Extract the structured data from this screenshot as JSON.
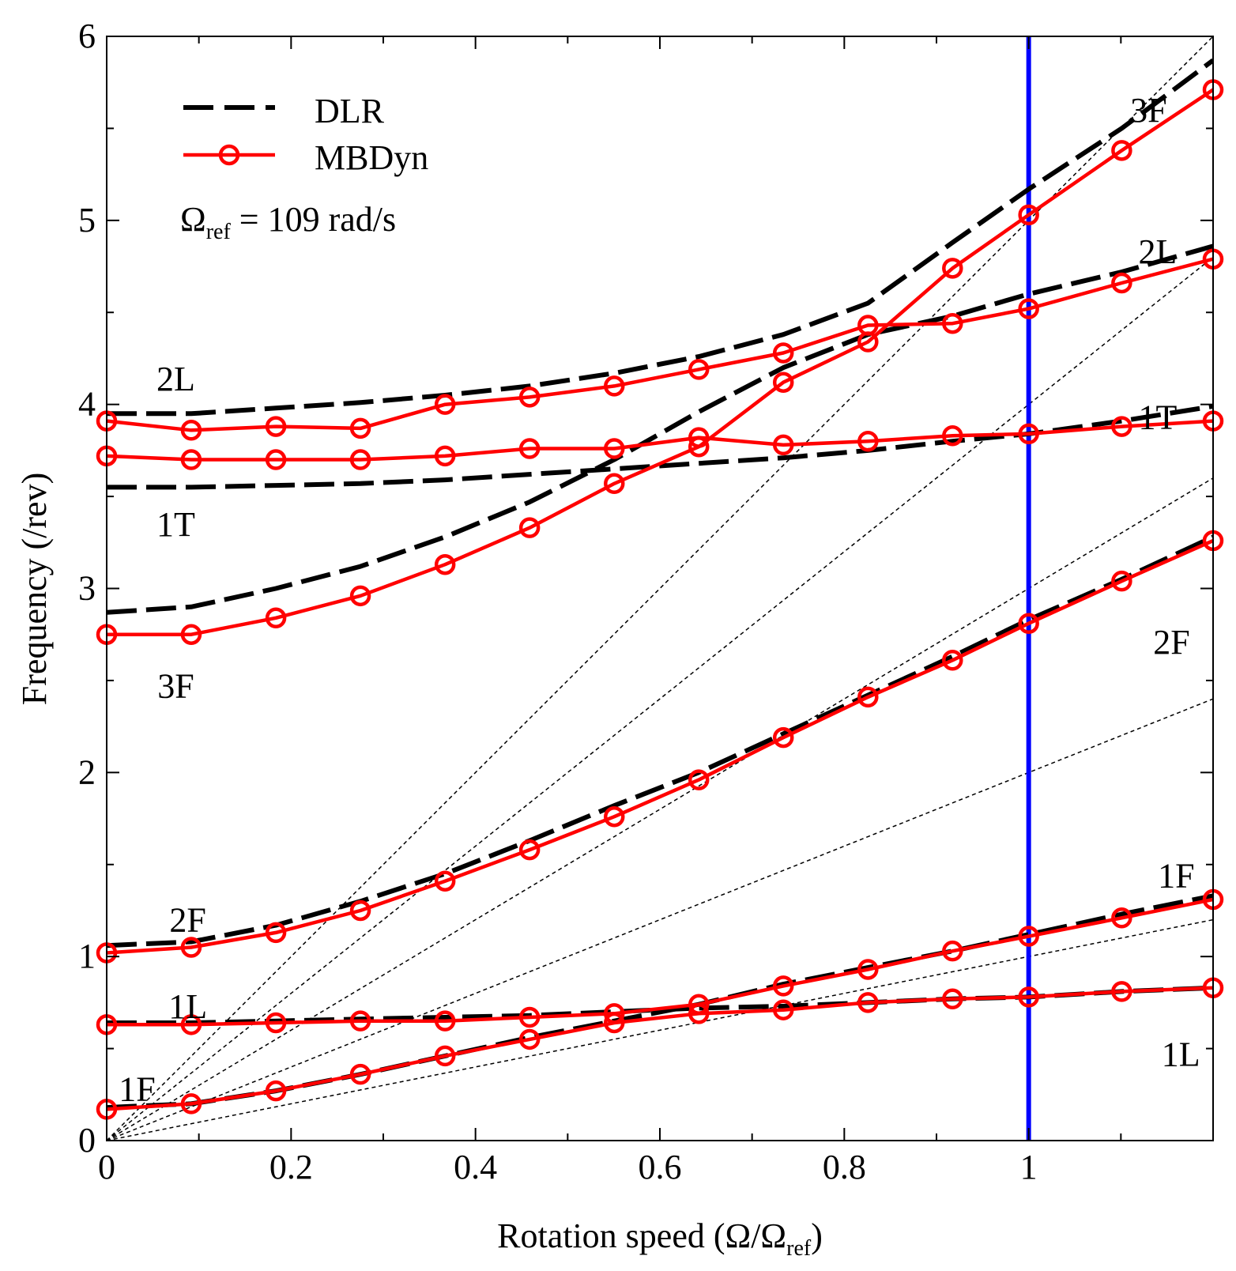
{
  "chart_data": {
    "type": "line",
    "title": "",
    "xlabel": "Rotation speed (Ω/Ωref)",
    "xlabel_parts": {
      "main": "Rotation speed (Ω/Ω",
      "sub": "ref",
      "close": ")"
    },
    "ylabel": "Frequency (/rev)",
    "xlim": [
      0,
      1.2
    ],
    "ylim": [
      0,
      6
    ],
    "x_ticks": [
      0,
      0.2,
      0.4,
      0.6,
      0.8,
      1
    ],
    "x_tick_labels": [
      "0",
      "0.2",
      "0.4",
      "0.6",
      "0.8",
      "1"
    ],
    "x_minor_step": 0.1,
    "y_ticks": [
      0,
      1,
      2,
      3,
      4,
      5,
      6
    ],
    "y_tick_labels": [
      "0",
      "1",
      "2",
      "3",
      "4",
      "5",
      "6"
    ],
    "y_minor_step": 0.5,
    "grid": false,
    "legend": {
      "placement": "top-left",
      "entries": [
        {
          "label": "DLR",
          "style": "dashed",
          "color": "#000000"
        },
        {
          "label": "MBDyn",
          "style": "solid-circle",
          "color": "#ff0000"
        }
      ]
    },
    "reference_note": {
      "symbol": "Ω",
      "sub": "ref",
      "rest": " = 109 rad/s"
    },
    "reference_line": {
      "x": 1,
      "color": "#0000ff"
    },
    "per_rev_lines": [
      1,
      2,
      3,
      4,
      5
    ],
    "x": [
      0,
      0.0917,
      0.1835,
      0.2752,
      0.367,
      0.4587,
      0.5505,
      0.6422,
      0.7339,
      0.8257,
      0.9174,
      1.0,
      1.1009,
      1.2
    ],
    "dlr_series": [
      {
        "name": "1F",
        "values": [
          0.18,
          0.2,
          0.27,
          0.36,
          0.46,
          0.56,
          0.65,
          0.74,
          0.85,
          0.94,
          1.03,
          1.12,
          1.23,
          1.33
        ]
      },
      {
        "name": "1L",
        "values": [
          0.64,
          0.64,
          0.65,
          0.66,
          0.67,
          0.68,
          0.7,
          0.72,
          0.73,
          0.75,
          0.77,
          0.78,
          0.81,
          0.83
        ]
      },
      {
        "name": "2F",
        "values": [
          1.06,
          1.08,
          1.17,
          1.3,
          1.45,
          1.63,
          1.82,
          2.0,
          2.21,
          2.42,
          2.63,
          2.83,
          3.05,
          3.28
        ]
      },
      {
        "name": "3F",
        "values": [
          2.87,
          2.9,
          3.0,
          3.12,
          3.28,
          3.47,
          3.7,
          3.96,
          4.2,
          4.38,
          4.48,
          4.6,
          4.72,
          4.86
        ]
      },
      {
        "name": "1T",
        "values": [
          3.55,
          3.55,
          3.56,
          3.57,
          3.59,
          3.62,
          3.65,
          3.68,
          3.71,
          3.75,
          3.8,
          3.84,
          3.91,
          3.99
        ]
      },
      {
        "name": "2L",
        "values": [
          3.95,
          3.95,
          3.98,
          4.01,
          4.05,
          4.1,
          4.17,
          4.26,
          4.38,
          4.55,
          4.88,
          5.17,
          5.5,
          5.87
        ]
      }
    ],
    "mbdyn_series": [
      {
        "name": "1F",
        "values": [
          0.17,
          0.2,
          0.27,
          0.36,
          0.46,
          0.55,
          0.64,
          0.69,
          0.71,
          0.75,
          0.77,
          0.78,
          0.81,
          0.83
        ]
      },
      {
        "name": "1L",
        "values": [
          0.63,
          0.63,
          0.64,
          0.65,
          0.65,
          0.67,
          0.69,
          0.74,
          0.84,
          0.93,
          1.03,
          1.11,
          1.21,
          1.31
        ]
      },
      {
        "name": "2F",
        "values": [
          1.02,
          1.05,
          1.13,
          1.25,
          1.41,
          1.58,
          1.76,
          1.96,
          2.19,
          2.41,
          2.61,
          2.81,
          3.04,
          3.26
        ]
      },
      {
        "name": "3F",
        "values": [
          2.75,
          2.75,
          2.84,
          2.96,
          3.13,
          3.33,
          3.57,
          3.77,
          4.12,
          4.34,
          4.74,
          5.03,
          5.38,
          5.71
        ]
      },
      {
        "name": "1T",
        "values": [
          3.72,
          3.7,
          3.7,
          3.7,
          3.72,
          3.76,
          3.76,
          3.82,
          3.78,
          3.8,
          3.83,
          3.84,
          3.88,
          3.91
        ]
      },
      {
        "name": "2L",
        "values": [
          3.91,
          3.86,
          3.88,
          3.87,
          4.0,
          4.04,
          4.1,
          4.19,
          4.28,
          4.43,
          4.44,
          4.52,
          4.66,
          4.79
        ]
      }
    ],
    "mode_labels": [
      {
        "text": "3F",
        "x": 1.13,
        "y": 5.58
      },
      {
        "text": "2L",
        "x": 1.14,
        "y": 4.81
      },
      {
        "text": "2L",
        "x": 0.075,
        "y": 4.12
      },
      {
        "text": "1T",
        "x": 1.14,
        "y": 3.91
      },
      {
        "text": "1T",
        "x": 0.075,
        "y": 3.33
      },
      {
        "text": "2F",
        "x": 1.155,
        "y": 2.69
      },
      {
        "text": "3F",
        "x": 0.075,
        "y": 2.45
      },
      {
        "text": "2F",
        "x": 0.088,
        "y": 1.18
      },
      {
        "text": "1L",
        "x": 0.088,
        "y": 0.71
      },
      {
        "text": "1F",
        "x": 1.16,
        "y": 1.42
      },
      {
        "text": "1L",
        "x": 1.165,
        "y": 0.45
      },
      {
        "text": "1F",
        "x": 0.033,
        "y": 0.26
      }
    ]
  }
}
